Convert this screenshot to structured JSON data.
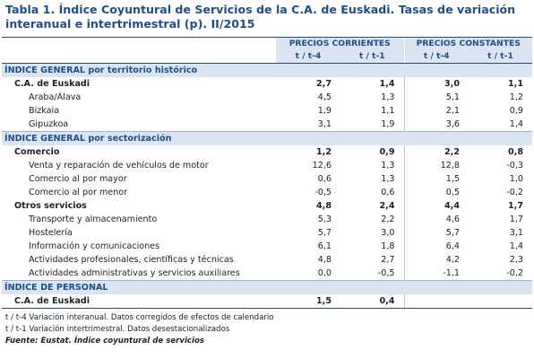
{
  "title": "Tabla 1. Índice Coyuntural de Servicios de la C.A. de Euskadi. Tasas de variación interanual e intertrimestral (p). II/2015",
  "header": {
    "group1": "PRECIOS CORRIENTES",
    "group2": "PRECIOS CONSTANTES",
    "col1": "t / t-4",
    "col2": "t / t-1",
    "col3": "t / t-4",
    "col4": "t / t-1"
  },
  "sections": [
    {
      "title": "ÍNDICE GENERAL por territorio histórico",
      "rows": [
        {
          "label": "C.A. de Euskadi",
          "bold": true,
          "level": 1,
          "values": [
            "2,7",
            "1,4",
            "3,0",
            "1,1"
          ]
        },
        {
          "label": "Araba/Álava",
          "bold": false,
          "level": 2,
          "values": [
            "4,5",
            "1,3",
            "5,1",
            "1,2"
          ]
        },
        {
          "label": "Bizkaia",
          "bold": false,
          "level": 2,
          "values": [
            "1,9",
            "1,1",
            "2,1",
            "0,9"
          ]
        },
        {
          "label": "Gipuzkoa",
          "bold": false,
          "level": 2,
          "values": [
            "3,1",
            "1,9",
            "3,6",
            "1,4"
          ]
        }
      ]
    },
    {
      "title": "ÍNDICE GENERAL por sectorización",
      "rows": [
        {
          "label": "Comercio",
          "bold": true,
          "level": 1,
          "values": [
            "1,2",
            "0,9",
            "2,2",
            "0,8"
          ]
        },
        {
          "label": "Venta y reparación de vehículos de motor",
          "bold": false,
          "level": 2,
          "values": [
            "12,6",
            "1,3",
            "12,8",
            "-0,3"
          ]
        },
        {
          "label": "Comercio al por mayor",
          "bold": false,
          "level": 2,
          "values": [
            "0,6",
            "1,3",
            "1,5",
            "1,0"
          ]
        },
        {
          "label": "Comercio al por menor",
          "bold": false,
          "level": 2,
          "values": [
            "-0,5",
            "0,6",
            "0,5",
            "-0,2"
          ]
        },
        {
          "label": "Otros servicios",
          "bold": true,
          "level": 1,
          "values": [
            "4,8",
            "2,4",
            "4,4",
            "1,7"
          ]
        },
        {
          "label": "Transporte y almacenamiento",
          "bold": false,
          "level": 2,
          "values": [
            "5,3",
            "2,2",
            "4,6",
            "1,7"
          ]
        },
        {
          "label": "Hostelería",
          "bold": false,
          "level": 2,
          "values": [
            "5,7",
            "3,0",
            "5,7",
            "3,1"
          ]
        },
        {
          "label": "Información y comunicaciones",
          "bold": false,
          "level": 2,
          "values": [
            "6,1",
            "1,8",
            "6,4",
            "1,4"
          ]
        },
        {
          "label": "Actividades profesionales, científicas y técnicas",
          "bold": false,
          "level": 2,
          "values": [
            "4,8",
            "2,7",
            "4,2",
            "2,3"
          ]
        },
        {
          "label": "Actividades administrativas y servicios auxiliares",
          "bold": false,
          "level": 2,
          "values": [
            "0,0",
            "-0,5",
            "-1,1",
            "-0,2"
          ]
        }
      ]
    },
    {
      "title": "ÍNDICE DE PERSONAL",
      "rows": [
        {
          "label": "C.A. de Euskadi",
          "bold": true,
          "level": 1,
          "values": [
            "1,5",
            "0,4",
            "",
            ""
          ]
        }
      ]
    }
  ],
  "notes": [
    "t / t-4 Variación interanual. Datos corregidos de efectos de calendario",
    "t / t-1 Variación intertrimestral. Datos desestacionalizados"
  ],
  "source": "Fuente: Eustat. Índice coyuntural de servicios",
  "colors": {
    "accent": "#1f4e8c",
    "header_bg": "#dbe5f1"
  }
}
